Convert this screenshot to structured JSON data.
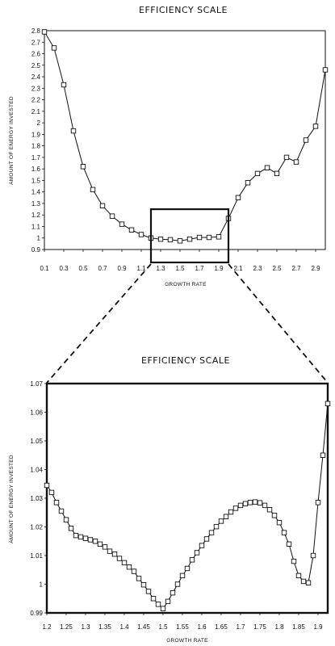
{
  "chart_data": [
    {
      "type": "line",
      "title": "EFFICIENCY SCALE",
      "xlabel": "GROWTH RATE",
      "ylabel": "AMOUNT OF ENERGY INVESTED",
      "xlim": [
        0.1,
        3.0
      ],
      "ylim": [
        0.9,
        2.8
      ],
      "x_ticks": [
        "0.1",
        "0.3",
        "0.5",
        "0.7",
        "0.9",
        "1.1",
        "1.3",
        "1.5",
        "1.7",
        "1.9",
        "2.1",
        "2.3",
        "2.5",
        "2.7",
        "2.9"
      ],
      "y_ticks": [
        "0.9",
        "1",
        "1.1",
        "1.2",
        "1.3",
        "1.4",
        "1.5",
        "1.6",
        "1.7",
        "1.8",
        "1.9",
        "2",
        "2.1",
        "2.2",
        "2.3",
        "2.4",
        "2.5",
        "2.6",
        "2.7",
        "2.8"
      ],
      "marker": "square",
      "x": [
        0.1,
        0.2,
        0.3,
        0.4,
        0.5,
        0.6,
        0.7,
        0.8,
        0.9,
        1.0,
        1.1,
        1.2,
        1.3,
        1.4,
        1.5,
        1.6,
        1.7,
        1.8,
        1.9,
        2.0,
        2.1,
        2.2,
        2.3,
        2.4,
        2.5,
        2.6,
        2.7,
        2.8,
        2.9,
        3.0
      ],
      "y": [
        2.79,
        2.65,
        2.33,
        1.93,
        1.62,
        1.42,
        1.28,
        1.19,
        1.12,
        1.07,
        1.03,
        1.0,
        0.99,
        0.985,
        0.975,
        0.99,
        1.005,
        1.005,
        1.01,
        1.17,
        1.35,
        1.48,
        1.56,
        1.61,
        1.56,
        1.7,
        1.66,
        1.85,
        1.97,
        2.46
      ],
      "zoom_box": {
        "x": [
          1.2,
          2.0
        ],
        "y": [
          0.9,
          1.25
        ]
      }
    },
    {
      "type": "line",
      "title": "EFFICIENCY SCALE",
      "xlabel": "GROWTH RATE",
      "ylabel": "AMOUNT OF ENERGY INVESTED",
      "xlim": [
        1.2,
        1.925
      ],
      "ylim": [
        0.99,
        1.07
      ],
      "x_ticks": [
        "1.2",
        "1.25",
        "1.3",
        "1.35",
        "1.4",
        "1.45",
        "1.5",
        "1.55",
        "1.6",
        "1.65",
        "1.7",
        "1.75",
        "1.8",
        "1.85",
        "1.9"
      ],
      "y_ticks": [
        "0.99",
        "1",
        "1.01",
        "1.02",
        "1.03",
        "1.04",
        "1.05",
        "1.06",
        "1.07"
      ],
      "marker": "square",
      "x": [
        1.2,
        1.2125,
        1.225,
        1.2375,
        1.25,
        1.2625,
        1.275,
        1.2875,
        1.3,
        1.3125,
        1.325,
        1.3375,
        1.35,
        1.3625,
        1.375,
        1.3875,
        1.4,
        1.4125,
        1.425,
        1.4375,
        1.45,
        1.4625,
        1.475,
        1.4875,
        1.5,
        1.5125,
        1.525,
        1.5375,
        1.55,
        1.5625,
        1.575,
        1.5875,
        1.6,
        1.6125,
        1.625,
        1.6375,
        1.65,
        1.6625,
        1.675,
        1.6875,
        1.7,
        1.7125,
        1.725,
        1.7375,
        1.75,
        1.7625,
        1.775,
        1.7875,
        1.8,
        1.8125,
        1.825,
        1.8375,
        1.85,
        1.8625,
        1.875,
        1.8875,
        1.9,
        1.9125,
        1.925
      ],
      "y": [
        1.0345,
        1.032,
        1.0285,
        1.0255,
        1.0225,
        1.0195,
        1.017,
        1.0165,
        1.016,
        1.0155,
        1.015,
        1.014,
        1.013,
        1.0115,
        1.0105,
        1.009,
        1.0075,
        1.006,
        1.0045,
        1.002,
        0.9998,
        0.9975,
        0.995,
        0.993,
        0.9915,
        0.994,
        0.997,
        1.0,
        1.003,
        1.0055,
        1.0085,
        1.011,
        1.0135,
        1.0158,
        1.018,
        1.0201,
        1.022,
        1.0236,
        1.0252,
        1.0265,
        1.0275,
        1.0281,
        1.0285,
        1.0287,
        1.0284,
        1.0275,
        1.026,
        1.024,
        1.0215,
        1.018,
        1.014,
        1.008,
        1.003,
        1.001,
        1.0005,
        1.01,
        1.0285,
        1.045,
        1.063
      ]
    }
  ]
}
